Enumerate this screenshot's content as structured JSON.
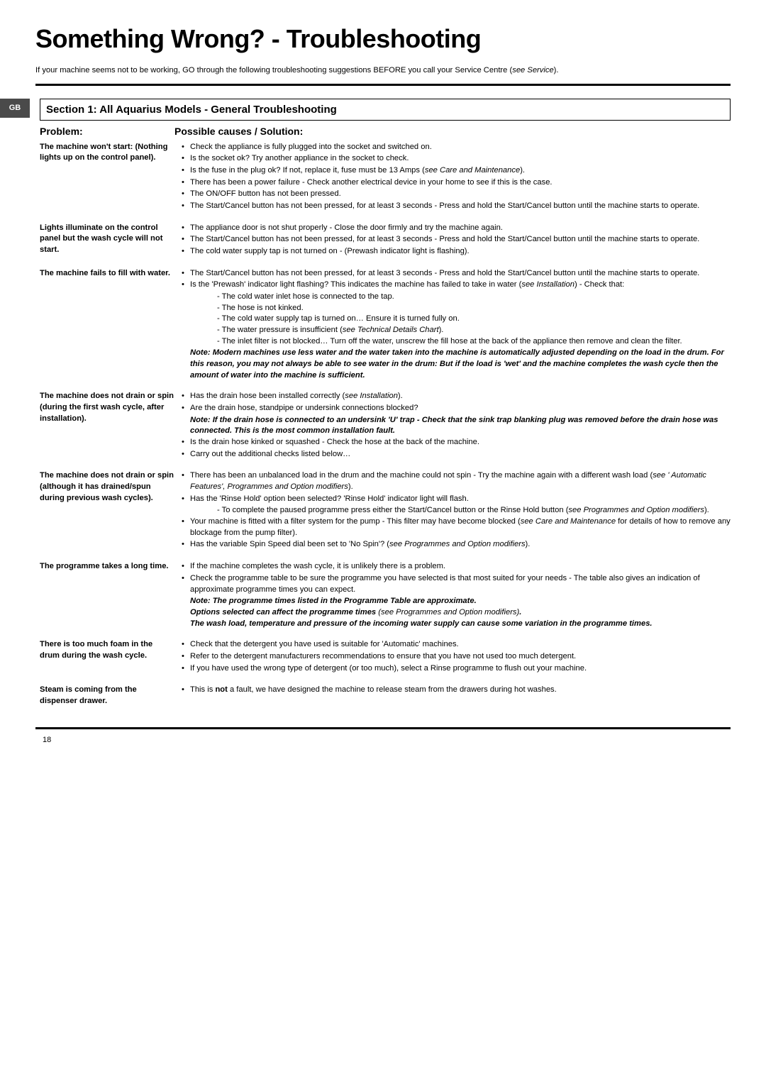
{
  "title": "Something Wrong? - Troubleshooting",
  "intro_a": "If your machine seems not to be working, GO through the following troubleshooting suggestions BEFORE you call your Service Centre (",
  "intro_b": "see Service",
  "intro_c": ").",
  "tab": "GB",
  "section_heading": "Section 1: All Aquarius Models - General Troubleshooting",
  "hdr_problem": "Problem:",
  "hdr_solution": "Possible causes / Solution:",
  "p1_label": "The machine won't start: (Nothing lights up on the control panel).",
  "p1_b1": "Check the appliance is fully plugged into the socket and switched on.",
  "p1_b2": "Is the socket ok? Try another appliance in the socket to check.",
  "p1_b3a": "Is the fuse in the plug ok? If not, replace it, fuse must be 13 Amps (",
  "p1_b3b": "see Care and Maintenance",
  "p1_b3c": ").",
  "p1_b4": "There has been a power failure - Check another electrical device in your home to see if this is the case.",
  "p1_b5": "The ON/OFF button has not been pressed.",
  "p1_b6": "The Start/Cancel button has not been pressed, for at least 3 seconds - Press and hold the Start/Cancel button until the machine starts to operate.",
  "p2_label": "Lights illuminate on the control panel but the wash cycle will not start.",
  "p2_b1": "The appliance door is not shut properly - Close the door firmly and try the machine again.",
  "p2_b2": "The Start/Cancel button has not been pressed, for at least 3 seconds - Press and hold the Start/Cancel button until the machine starts to operate.",
  "p2_b3": "The cold water supply tap is not turned on - (Prewash indicator light is flashing).",
  "p3_label": "The machine fails to fill with water.",
  "p3_b1": "The Start/Cancel button has not been pressed, for at least 3 seconds - Press and hold the Start/Cancel button until the machine starts to operate.",
  "p3_b2a": "Is the 'Prewash' indicator light flashing? This indicates the machine has failed to take in water (",
  "p3_b2b": "see Installation",
  "p3_b2c": ") - Check that:",
  "p3_s1": "- The cold water inlet hose is connected to the tap.",
  "p3_s2": "- The hose is not kinked.",
  "p3_s3": "- The cold water supply tap is turned on… Ensure it is turned fully on.",
  "p3_s4a": "- The water pressure is insufficient (",
  "p3_s4b": "see Technical Details Chart",
  "p3_s4c": ").",
  "p3_s5": "- The inlet filter is not blocked… Turn off the water, unscrew the fill hose at the back of the appliance then remove and clean the filter.",
  "p3_note": "Note: Modern machines use less water and the water taken into the machine is automatically adjusted depending on the load in the drum. For this reason, you may not always be able to see water in the drum: But if the load is 'wet' and the machine completes the wash cycle then the amount of water into the machine is sufficient.",
  "p4_label": "The machine does not drain or spin (during the first wash cycle, after installation).",
  "p4_b1a": "Has the drain hose been installed correctly (",
  "p4_b1b": "see Installation",
  "p4_b1c": ").",
  "p4_b2": "Are the drain hose, standpipe or undersink connections blocked?",
  "p4_note": "Note: If the drain hose is connected to an undersink 'U' trap - Check that the sink trap blanking plug was removed before the drain hose was connected. This is the most common installation fault.",
  "p4_b3": "Is the drain hose kinked or squashed - Check the hose at the back of the machine.",
  "p4_b4": "Carry out the additional checks listed below…",
  "p5_label": "The machine does not drain or spin (although it has drained/spun during previous wash cycles).",
  "p5_b1a": "There has been an unbalanced load in the drum and the machine could not spin - Try the machine again with a different wash load (",
  "p5_b1b": "see ' Automatic Features', Programmes and Option modifiers",
  "p5_b1c": ").",
  "p5_b2": "Has the 'Rinse Hold' option been selected? 'Rinse Hold' indicator light will flash.",
  "p5_s1a": "- To complete the paused programme press either the Start/Cancel button or the Rinse Hold button (",
  "p5_s1b": "see Programmes and Option modifiers",
  "p5_s1c": ").",
  "p5_b3a": "Your machine is fitted with a filter system for the pump - This filter may have become blocked (",
  "p5_b3b": "see Care and Maintenance",
  "p5_b3c": " for details of how to remove any blockage from the pump filter).",
  "p5_b4a": "Has the variable Spin Speed dial been set to 'No Spin'? (",
  "p5_b4b": "see Programmes and Option modifiers",
  "p5_b4c": ").",
  "p6_label": "The programme takes a long time.",
  "p6_b1": "If the machine completes the wash cycle, it is unlikely there is a problem.",
  "p6_b2": "Check the programme table to be sure the programme you have selected is that most suited for your needs - The table also gives an indication of approximate programme times you can expect.",
  "p6_note_a": "Note:  The programme times listed in the Programme Table are approximate.",
  "p6_note_b1": "Options selected can affect the programme times",
  "p6_note_b2": "see Programmes and Option modifiers",
  "p6_note_c": "The wash load, temperature and pressure of the incoming water supply can cause some variation in the programme times.",
  "p7_label": "There is too much foam in the drum during the wash cycle.",
  "p7_b1": "Check that the detergent you have used is suitable for 'Automatic' machines.",
  "p7_b2": "Refer to the detergent manufacturers recommendations to ensure that you have not used too much detergent.",
  "p7_b3": "If you have used the wrong type of detergent (or too much), select a Rinse programme to flush out your machine.",
  "p8_label": "Steam is coming from the dispenser drawer.",
  "p8_b1a": "This is ",
  "p8_b1b": "not",
  "p8_b1c": " a fault, we have designed the machine to release steam from the drawers during hot washes.",
  "page_num": "18"
}
